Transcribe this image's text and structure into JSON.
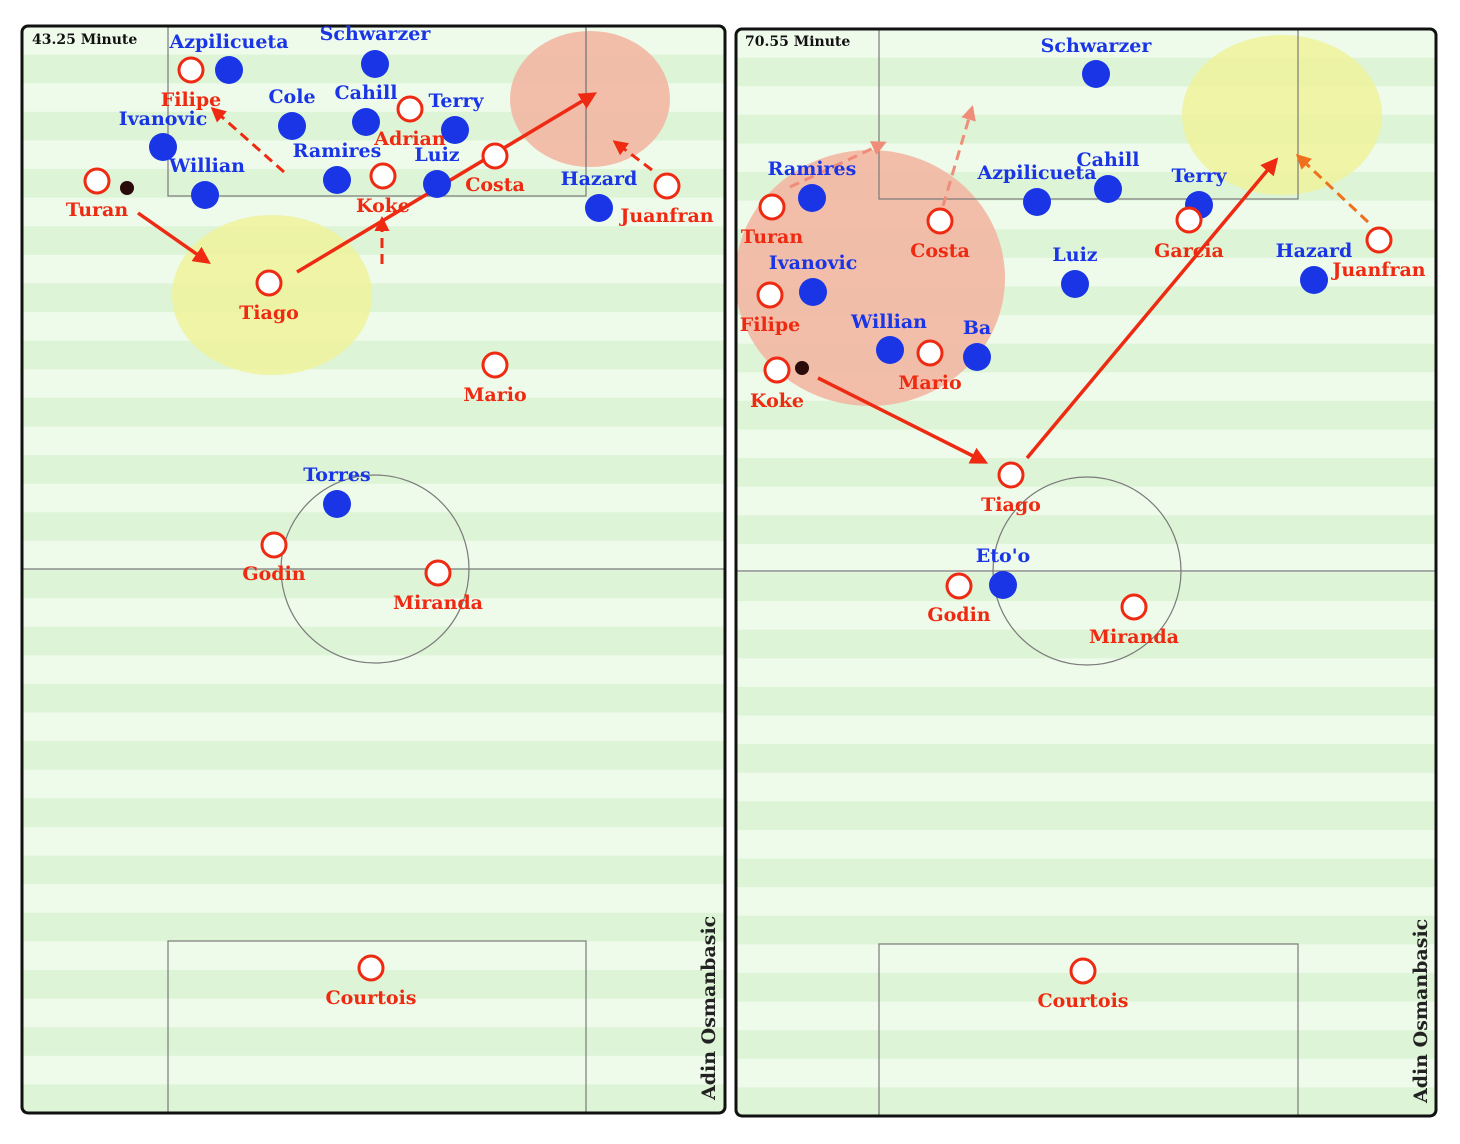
{
  "colors": {
    "pitch_light": "#eefaea",
    "pitch_dark": "#ddf4d6",
    "atletico": "#ee2b12",
    "chelsea": "#1a35e6",
    "zone_yellow": "#eef3a0",
    "zone_red": "#f2b7a3",
    "ball": "#2b0a0a"
  },
  "panels": [
    {
      "minute": "43.25 Minute",
      "credit": "Adin Osmanbasic",
      "players": [
        {
          "name": "Azpilicueta",
          "team": "blue"
        },
        {
          "name": "Schwarzer",
          "team": "blue"
        },
        {
          "name": "Cole",
          "team": "blue"
        },
        {
          "name": "Cahill",
          "team": "blue"
        },
        {
          "name": "Terry",
          "team": "blue"
        },
        {
          "name": "Ivanovic",
          "team": "blue"
        },
        {
          "name": "Willian",
          "team": "blue"
        },
        {
          "name": "Ramires",
          "team": "blue"
        },
        {
          "name": "Luiz",
          "team": "blue"
        },
        {
          "name": "Hazard",
          "team": "blue"
        },
        {
          "name": "Torres",
          "team": "blue"
        },
        {
          "name": "Filipe",
          "team": "red"
        },
        {
          "name": "Adrian",
          "team": "red"
        },
        {
          "name": "Turan",
          "team": "red"
        },
        {
          "name": "Koke",
          "team": "red"
        },
        {
          "name": "Costa",
          "team": "red"
        },
        {
          "name": "Juanfran",
          "team": "red"
        },
        {
          "name": "Tiago",
          "team": "red"
        },
        {
          "name": "Mario",
          "team": "red"
        },
        {
          "name": "Godin",
          "team": "red"
        },
        {
          "name": "Miranda",
          "team": "red"
        },
        {
          "name": "Courtois",
          "team": "red"
        }
      ]
    },
    {
      "minute": "70.55 Minute",
      "credit": "Adin Osmanbasic",
      "players": [
        {
          "name": "Schwarzer",
          "team": "blue"
        },
        {
          "name": "Ramires",
          "team": "blue"
        },
        {
          "name": "Azpilicueta",
          "team": "blue"
        },
        {
          "name": "Cahill",
          "team": "blue"
        },
        {
          "name": "Terry",
          "team": "blue"
        },
        {
          "name": "Ivanovic",
          "team": "blue"
        },
        {
          "name": "Luiz",
          "team": "blue"
        },
        {
          "name": "Hazard",
          "team": "blue"
        },
        {
          "name": "Willian",
          "team": "blue"
        },
        {
          "name": "Ba",
          "team": "blue"
        },
        {
          "name": "Eto'o",
          "team": "blue"
        },
        {
          "name": "Turan",
          "team": "red"
        },
        {
          "name": "Costa",
          "team": "red"
        },
        {
          "name": "Garcia",
          "team": "red"
        },
        {
          "name": "Juanfran",
          "team": "red"
        },
        {
          "name": "Filipe",
          "team": "red"
        },
        {
          "name": "Mario",
          "team": "red"
        },
        {
          "name": "Koke",
          "team": "red"
        },
        {
          "name": "Tiago",
          "team": "red"
        },
        {
          "name": "Godin",
          "team": "red"
        },
        {
          "name": "Miranda",
          "team": "red"
        },
        {
          "name": "Courtois",
          "team": "red"
        }
      ]
    }
  ]
}
